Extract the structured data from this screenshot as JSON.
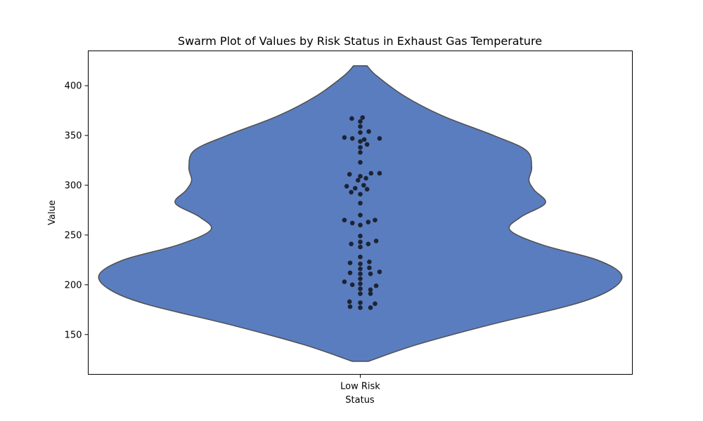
{
  "chart_data": {
    "type": "violin",
    "title": "Swarm Plot of Values by Risk Status in Exhaust Gas Temperature",
    "xlabel": "Status",
    "ylabel": "Value",
    "categories": [
      "Low Risk"
    ],
    "ylim": [
      110,
      435
    ],
    "yticks": [
      150,
      200,
      250,
      300,
      350,
      400
    ],
    "grid": false,
    "legend": "none",
    "colors": {
      "violin_fill": "#5a7dc0",
      "violin_edge": "#4f4f4f",
      "points": "#1c2333",
      "axes": "#000000"
    },
    "violin": {
      "category": "Low Risk",
      "y_min": 123,
      "y_max": 420,
      "density_profile": [
        {
          "y": 123,
          "w": 0.029
        },
        {
          "y": 140,
          "w": 0.21
        },
        {
          "y": 160,
          "w": 0.48
        },
        {
          "y": 180,
          "w": 0.78
        },
        {
          "y": 195,
          "w": 0.92
        },
        {
          "y": 210,
          "w": 0.96
        },
        {
          "y": 225,
          "w": 0.87
        },
        {
          "y": 240,
          "w": 0.67
        },
        {
          "y": 255,
          "w": 0.55
        },
        {
          "y": 268,
          "w": 0.59
        },
        {
          "y": 282,
          "w": 0.68
        },
        {
          "y": 295,
          "w": 0.64
        },
        {
          "y": 305,
          "w": 0.62
        },
        {
          "y": 318,
          "w": 0.63
        },
        {
          "y": 335,
          "w": 0.61
        },
        {
          "y": 350,
          "w": 0.49
        },
        {
          "y": 370,
          "w": 0.3
        },
        {
          "y": 390,
          "w": 0.16
        },
        {
          "y": 410,
          "w": 0.06
        },
        {
          "y": 420,
          "w": 0.025
        }
      ]
    },
    "points": [
      {
        "y": 367,
        "dx": -0.075
      },
      {
        "y": 368,
        "dx": 0.02
      },
      {
        "y": 364,
        "dx": 0.0
      },
      {
        "y": 359,
        "dx": 0.0
      },
      {
        "y": 353,
        "dx": 0.0
      },
      {
        "y": 354,
        "dx": 0.075
      },
      {
        "y": 348,
        "dx": -0.14
      },
      {
        "y": 347,
        "dx": -0.07
      },
      {
        "y": 346,
        "dx": 0.035
      },
      {
        "y": 347,
        "dx": 0.17
      },
      {
        "y": 344,
        "dx": 0.0
      },
      {
        "y": 341,
        "dx": 0.06
      },
      {
        "y": 338,
        "dx": 0.0
      },
      {
        "y": 333,
        "dx": 0.0
      },
      {
        "y": 323,
        "dx": 0.0
      },
      {
        "y": 311,
        "dx": -0.095
      },
      {
        "y": 312,
        "dx": 0.095
      },
      {
        "y": 312,
        "dx": 0.17
      },
      {
        "y": 309,
        "dx": 0.0
      },
      {
        "y": 307,
        "dx": 0.05
      },
      {
        "y": 305,
        "dx": -0.02
      },
      {
        "y": 300,
        "dx": 0.03
      },
      {
        "y": 299,
        "dx": -0.12
      },
      {
        "y": 297,
        "dx": -0.045
      },
      {
        "y": 296,
        "dx": 0.06
      },
      {
        "y": 293,
        "dx": -0.08
      },
      {
        "y": 291,
        "dx": 0.0
      },
      {
        "y": 282,
        "dx": 0.0
      },
      {
        "y": 270,
        "dx": 0.0
      },
      {
        "y": 265,
        "dx": -0.14
      },
      {
        "y": 265,
        "dx": 0.13
      },
      {
        "y": 263,
        "dx": 0.07
      },
      {
        "y": 262,
        "dx": -0.07
      },
      {
        "y": 260,
        "dx": 0.0
      },
      {
        "y": 249,
        "dx": 0.0
      },
      {
        "y": 244,
        "dx": 0.14
      },
      {
        "y": 243,
        "dx": 0.0
      },
      {
        "y": 241,
        "dx": -0.08
      },
      {
        "y": 241,
        "dx": 0.07
      },
      {
        "y": 238,
        "dx": 0.0
      },
      {
        "y": 228,
        "dx": 0.0
      },
      {
        "y": 223,
        "dx": 0.08
      },
      {
        "y": 222,
        "dx": -0.09
      },
      {
        "y": 221,
        "dx": 0.0
      },
      {
        "y": 217,
        "dx": 0.08
      },
      {
        "y": 216,
        "dx": 0.0
      },
      {
        "y": 213,
        "dx": 0.17
      },
      {
        "y": 212,
        "dx": -0.09
      },
      {
        "y": 211,
        "dx": 0.0
      },
      {
        "y": 211,
        "dx": 0.09
      },
      {
        "y": 206,
        "dx": 0.0
      },
      {
        "y": 203,
        "dx": -0.14
      },
      {
        "y": 201,
        "dx": 0.0
      },
      {
        "y": 200,
        "dx": -0.07
      },
      {
        "y": 199,
        "dx": 0.14
      },
      {
        "y": 196,
        "dx": 0.0
      },
      {
        "y": 195,
        "dx": 0.09
      },
      {
        "y": 191,
        "dx": 0.0
      },
      {
        "y": 191,
        "dx": 0.09
      },
      {
        "y": 183,
        "dx": -0.095
      },
      {
        "y": 182,
        "dx": 0.0
      },
      {
        "y": 181,
        "dx": 0.13
      },
      {
        "y": 178,
        "dx": -0.09
      },
      {
        "y": 177,
        "dx": 0.0
      },
      {
        "y": 177,
        "dx": 0.09
      }
    ]
  }
}
